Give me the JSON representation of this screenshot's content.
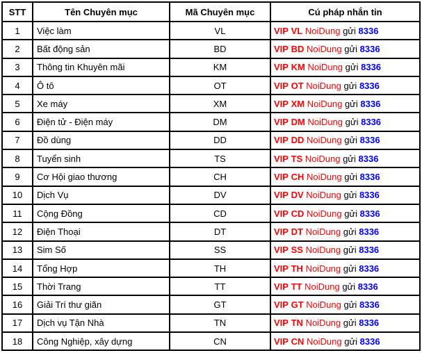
{
  "headers": [
    "STT",
    "Tên Chuyên mục",
    "Mã Chuyên mục",
    "Cú pháp nhắn tin"
  ],
  "syntax": {
    "prefix": "VIP",
    "content": "NoiDung",
    "send": "gửi",
    "number": "8336"
  },
  "rows": [
    [
      "1",
      "Việc làm",
      "VL"
    ],
    [
      "2",
      "Bất động sản",
      "BD"
    ],
    [
      "3",
      "Thông tin Khuyên mãi",
      "KM"
    ],
    [
      "4",
      "Ô tô",
      "OT"
    ],
    [
      "5",
      "Xe máy",
      "XM"
    ],
    [
      "6",
      "Điện tử - Điện máy",
      "DM"
    ],
    [
      "7",
      "Đồ dùng",
      "DD"
    ],
    [
      "8",
      "Tuyển sinh",
      "TS"
    ],
    [
      "9",
      "Cơ Hội giao thương",
      "CH"
    ],
    [
      "10",
      "Dịch Vụ",
      "DV"
    ],
    [
      "11",
      "Cộng Đồng",
      "CD"
    ],
    [
      "12",
      "Điện Thoại",
      "DT"
    ],
    [
      "13",
      "Sim Số",
      "SS"
    ],
    [
      "14",
      "Tổng Hợp",
      "TH"
    ],
    [
      "15",
      "Thời Trang",
      "TT"
    ],
    [
      "16",
      "Giải Trí thư giãn",
      "GT"
    ],
    [
      "17",
      "Dịch vụ Tận Nhà",
      "TN"
    ],
    [
      "18",
      "Công Nghiệp, xây dựng",
      "CN"
    ]
  ],
  "colors": {
    "keyword": "#ff0000",
    "number": "#0000ff"
  }
}
